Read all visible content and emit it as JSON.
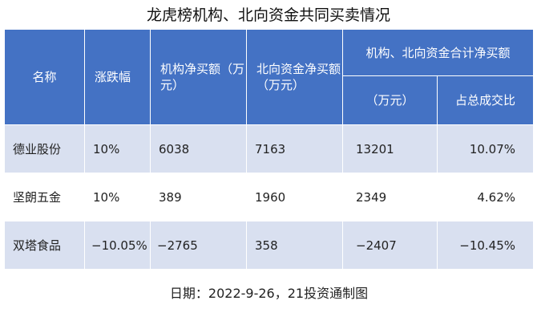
{
  "title": "龙虎榜机构、北向资金共同买卖情况",
  "headers": {
    "name": "名称",
    "change": "涨跌幅",
    "inst_net": "机构净买额（万元）",
    "north_net": "北向资金净买额（万元）",
    "combined": "机构、北向资金合计净买额",
    "combined_value": "（万元）",
    "share": "占总成交比"
  },
  "rows": [
    {
      "name": "德业股份",
      "change": "10%",
      "inst_net": "6038",
      "north_net": "7163",
      "combined": "13201",
      "share": "10.07%"
    },
    {
      "name": "坚朗五金",
      "change": "10%",
      "inst_net": "389",
      "north_net": "1960",
      "combined": "2349",
      "share": "4.62%"
    },
    {
      "name": "双塔食品",
      "change": "−10.05%",
      "inst_net": "−2765",
      "north_net": "358",
      "combined": "−2407",
      "share": "−10.45%"
    }
  ],
  "footer": "日期：2022-9-26，21投资通制图",
  "colors": {
    "header_bg": "#4472c4",
    "row_shade": "#d9e0f0"
  }
}
